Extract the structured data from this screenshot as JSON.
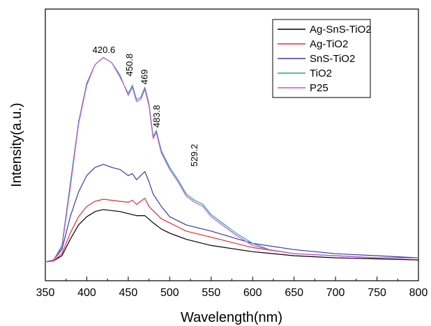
{
  "chart_data": {
    "type": "line",
    "title": "",
    "xlabel": "Wavelength(nm)",
    "ylabel": "Intensity(a.u.)",
    "xlim": [
      350,
      800
    ],
    "ylim": [
      0,
      100
    ],
    "x_ticks": [
      "350",
      "400",
      "450",
      "500",
      "550",
      "600",
      "650",
      "700",
      "750",
      "800"
    ],
    "y_ticks_shown": false,
    "grid": false,
    "legend_position": "top-right",
    "annotations": [
      {
        "text": "420.6",
        "x": 420.6,
        "y": 99
      },
      {
        "text": "450.8",
        "x": 450.8,
        "y": 89
      },
      {
        "text": "469",
        "x": 469,
        "y": 85
      },
      {
        "text": "483.8",
        "x": 483.8,
        "y": 64
      },
      {
        "text": "529.2",
        "x": 529.2,
        "y": 45
      }
    ],
    "series": [
      {
        "name": "Ag-SnS-TiO2",
        "color": "#000000",
        "x": [
          350,
          360,
          370,
          380,
          390,
          400,
          410,
          420,
          430,
          440,
          450,
          460,
          470,
          480,
          490,
          500,
          520,
          550,
          600,
          650,
          700,
          750,
          800
        ],
        "y": [
          0,
          0.5,
          3,
          11,
          18,
          22,
          24.5,
          25.5,
          25,
          24.5,
          23.5,
          22.5,
          22.5,
          19,
          16,
          14,
          11,
          8,
          5,
          3,
          2,
          1.5,
          1
        ]
      },
      {
        "name": "Ag-TiO2",
        "color": "#e03030",
        "x": [
          350,
          360,
          370,
          380,
          390,
          400,
          410,
          420,
          430,
          440,
          450,
          455,
          460,
          470,
          475,
          480,
          490,
          500,
          520,
          550,
          600,
          650,
          700,
          750,
          800
        ],
        "y": [
          0,
          0.5,
          4,
          14,
          22,
          27,
          29.5,
          30.5,
          30,
          29.5,
          29,
          30,
          28,
          31,
          27,
          25,
          21,
          19,
          15,
          12,
          7,
          4,
          3,
          2,
          2
        ]
      },
      {
        "name": "SnS-TiO2",
        "color": "#3a3aa0",
        "x": [
          350,
          360,
          370,
          380,
          390,
          400,
          410,
          420,
          430,
          440,
          450,
          455,
          460,
          470,
          475,
          480,
          490,
          500,
          520,
          550,
          600,
          650,
          700,
          750,
          800
        ],
        "y": [
          0,
          1,
          6,
          22,
          34,
          42,
          46,
          47.5,
          46,
          45,
          42,
          43,
          40,
          44,
          39,
          33,
          27,
          22,
          18,
          15,
          9,
          6,
          4,
          3,
          2
        ]
      },
      {
        "name": "TiO2",
        "color": "#1aa8a8",
        "x": [
          350,
          360,
          370,
          380,
          390,
          400,
          410,
          420,
          430,
          440,
          445,
          450,
          455,
          460,
          465,
          470,
          475,
          480,
          483.8,
          490,
          500,
          510,
          520,
          530,
          540,
          550,
          560,
          580,
          600,
          620,
          650,
          700,
          750,
          800
        ],
        "y": [
          0,
          1,
          8,
          38,
          68,
          87,
          96,
          99.5,
          97,
          91,
          86,
          82,
          86,
          79,
          80,
          85,
          77,
          61,
          64,
          54,
          46,
          40,
          33,
          30,
          28,
          23,
          20,
          14,
          9,
          6,
          4,
          3,
          2,
          2
        ]
      },
      {
        "name": "P25",
        "color": "#d050d0",
        "x": [
          350,
          360,
          370,
          380,
          390,
          400,
          410,
          420,
          430,
          440,
          445,
          450,
          455,
          460,
          465,
          470,
          475,
          480,
          483.8,
          490,
          500,
          510,
          520,
          530,
          540,
          550,
          560,
          580,
          600,
          620,
          650,
          700,
          750,
          800
        ],
        "y": [
          0,
          1,
          7,
          36,
          67,
          86,
          96,
          99.5,
          97,
          90,
          86,
          81,
          85,
          78,
          79,
          84,
          76,
          60,
          63,
          53,
          45,
          39,
          32,
          29,
          27,
          22,
          19,
          13,
          8,
          6,
          4,
          3,
          2,
          2
        ]
      }
    ]
  }
}
